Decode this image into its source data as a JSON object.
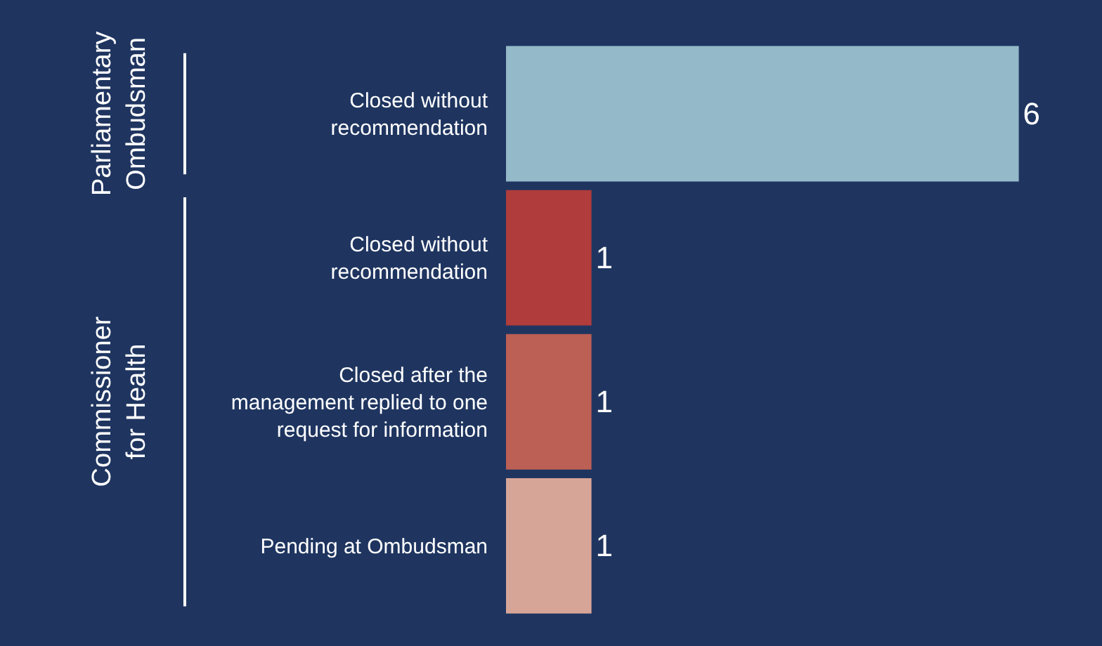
{
  "chart_data": {
    "type": "bar",
    "orientation": "horizontal",
    "categories": [
      "Closed without recommendation",
      "Closed without recommendation",
      "Closed after the management replied to one request for information",
      "Pending at Ombudsman"
    ],
    "values": [
      6,
      1,
      1,
      1
    ],
    "colors": [
      "#94b9c8",
      "#b03c3c",
      "#bc5f55",
      "#d7a597"
    ],
    "data_labels": true,
    "tick_labels": "y",
    "grid": false,
    "legend": false,
    "annotations": [
      "Parliamentary Ombudsman",
      "Commissioner for Health"
    ]
  }
}
